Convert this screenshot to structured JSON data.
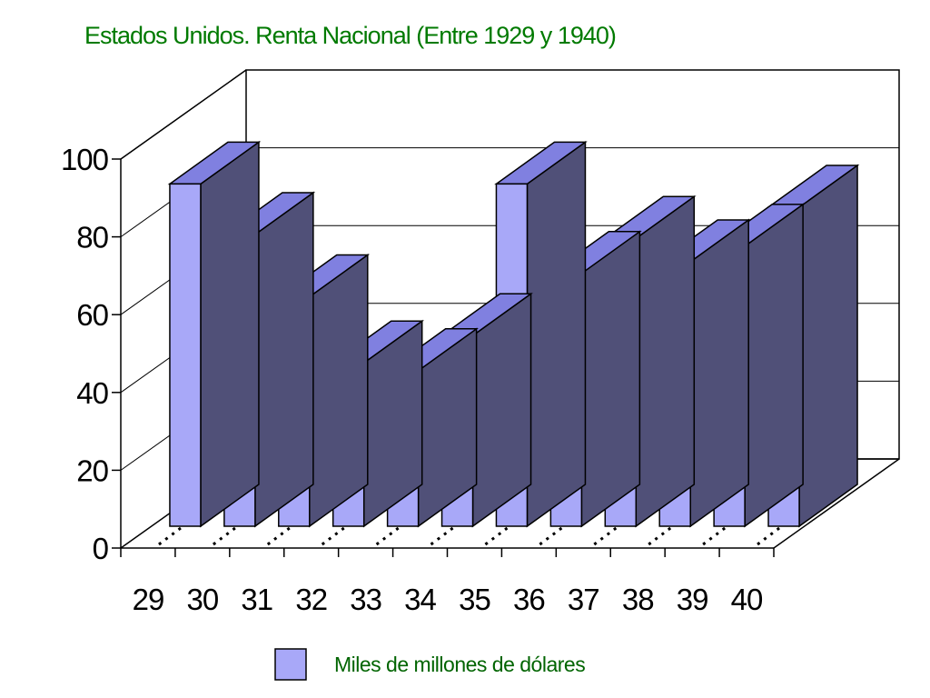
{
  "chart_data": {
    "type": "bar",
    "style": "3d-column",
    "title": "Estados Unidos. Renta Nacional (Entre 1929 y 1940)",
    "categories": [
      "29",
      "30",
      "31",
      "32",
      "33",
      "34",
      "35",
      "36",
      "37",
      "38",
      "39",
      "40"
    ],
    "series": [
      {
        "name": "Miles de millones de dólares",
        "values": [
          88,
          75,
          59,
          42,
          40,
          49,
          88,
          65,
          74,
          68,
          72,
          82
        ]
      }
    ],
    "y_ticks": [
      "0",
      "20",
      "40",
      "60",
      "80",
      "100"
    ],
    "ylim": [
      0,
      100
    ],
    "grid": true,
    "legend_position": "bottom",
    "colors": {
      "title": "#007a00",
      "legend_text": "#006400",
      "bar_front": "#a8a8f8",
      "bar_side": "#505078",
      "bar_top": "#8080e0",
      "axis": "#000000"
    }
  }
}
